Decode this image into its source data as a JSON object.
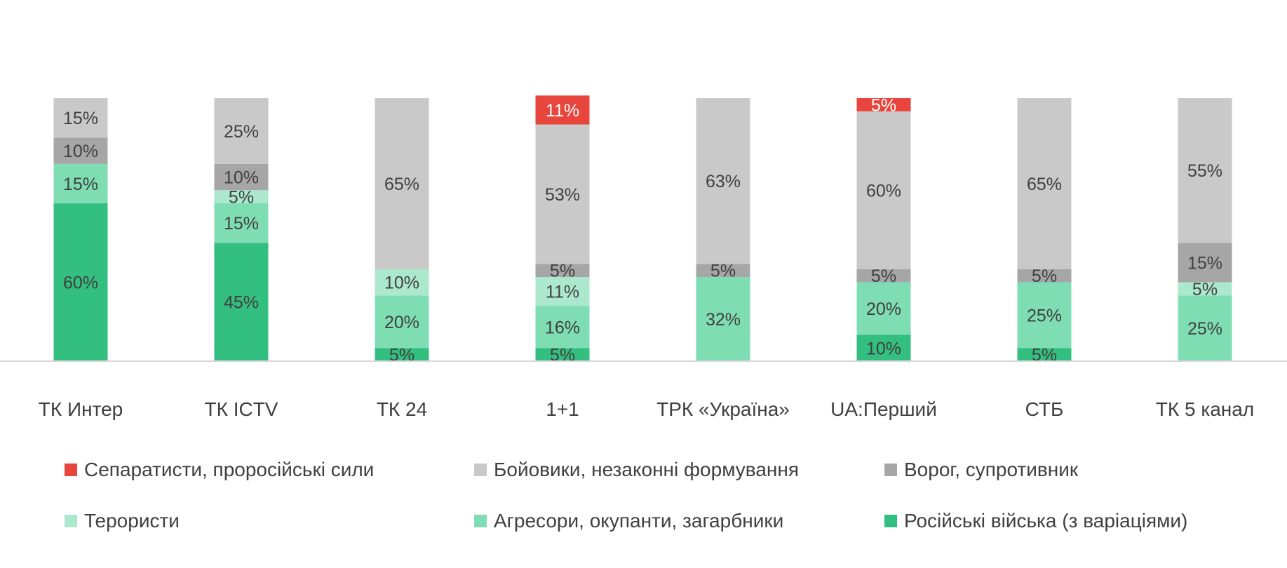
{
  "chart_data": {
    "type": "bar",
    "stacked": true,
    "title": "",
    "xlabel": "",
    "ylabel": "",
    "ylim": [
      0,
      100
    ],
    "grid": false,
    "legend_position": "bottom",
    "categories": [
      "ТК Интер",
      "ТК ICTV",
      "ТК 24",
      "1+1",
      "ТРК «Україна»",
      "UA:Перший",
      "СТБ",
      "ТК 5 канал"
    ],
    "series": [
      {
        "name": "Російські війська (з варіаціями)",
        "color": "#33BF7F",
        "text_color": "#404040",
        "values": [
          60,
          45,
          5,
          5,
          0,
          10,
          5,
          0
        ]
      },
      {
        "name": "Агресори, окупанти, загарбники",
        "color": "#7FDDB4",
        "text_color": "#404040",
        "values": [
          15,
          15,
          20,
          16,
          32,
          20,
          25,
          25
        ]
      },
      {
        "name": "Терористи",
        "color": "#ACE8CE",
        "text_color": "#404040",
        "values": [
          0,
          5,
          10,
          11,
          0,
          0,
          0,
          5
        ]
      },
      {
        "name": "Ворог, супротивник",
        "color": "#A6A6A6",
        "text_color": "#404040",
        "values": [
          10,
          10,
          0,
          5,
          5,
          5,
          5,
          15
        ]
      },
      {
        "name": "Бойовики, незаконні формування",
        "color": "#C9C9C9",
        "text_color": "#404040",
        "values": [
          15,
          25,
          65,
          53,
          63,
          60,
          65,
          55
        ]
      },
      {
        "name": "Сепаратисти, проросійські сили",
        "color": "#E8453C",
        "text_color": "#FFFFFF",
        "values": [
          0,
          0,
          0,
          11,
          0,
          5,
          0,
          0
        ]
      }
    ],
    "legend_order": [
      "Сепаратисти, проросійські сили",
      "Бойовики, незаконні формування",
      "Ворог, супротивник",
      "Терористи",
      "Агресори, окупанти, загарбники",
      "Російські війська (з варіаціями)"
    ],
    "label_suffix": "%"
  }
}
